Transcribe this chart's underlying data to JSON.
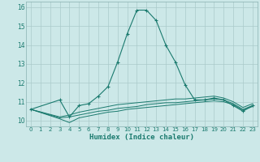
{
  "xlabel": "Humidex (Indice chaleur)",
  "x": [
    0,
    1,
    2,
    3,
    4,
    5,
    6,
    7,
    8,
    9,
    10,
    11,
    12,
    13,
    14,
    15,
    16,
    17,
    18,
    19,
    20,
    21,
    22,
    23
  ],
  "line1": [
    10.6,
    null,
    null,
    11.1,
    10.2,
    10.8,
    10.9,
    11.3,
    11.8,
    13.1,
    14.6,
    15.85,
    15.85,
    15.3,
    14.0,
    13.1,
    11.9,
    11.1,
    11.1,
    11.2,
    11.1,
    10.8,
    10.5,
    10.8
  ],
  "line2": [
    10.6,
    null,
    null,
    10.1,
    9.9,
    10.15,
    10.25,
    10.35,
    10.45,
    10.5,
    10.6,
    10.65,
    10.7,
    10.75,
    10.8,
    10.85,
    10.9,
    10.95,
    11.0,
    11.05,
    11.0,
    10.85,
    10.55,
    10.75
  ],
  "line3": [
    10.6,
    null,
    null,
    10.15,
    10.2,
    10.3,
    10.4,
    10.5,
    10.55,
    10.65,
    10.7,
    10.75,
    10.85,
    10.9,
    10.95,
    10.95,
    11.0,
    11.05,
    11.1,
    11.15,
    11.1,
    10.9,
    10.6,
    10.8
  ],
  "line4": [
    10.6,
    null,
    null,
    10.2,
    10.3,
    10.45,
    10.55,
    10.65,
    10.75,
    10.85,
    10.9,
    10.95,
    11.0,
    11.05,
    11.1,
    11.15,
    11.15,
    11.2,
    11.25,
    11.3,
    11.2,
    11.0,
    10.7,
    10.9
  ],
  "color": "#1a7a6e",
  "bg_color": "#cce8e8",
  "grid_color": "#aacaca",
  "ylim": [
    9.7,
    16.3
  ],
  "xlim": [
    -0.5,
    23.5
  ],
  "yticks": [
    10,
    11,
    12,
    13,
    14,
    15,
    16
  ],
  "xticks": [
    0,
    1,
    2,
    3,
    4,
    5,
    6,
    7,
    8,
    9,
    10,
    11,
    12,
    13,
    14,
    15,
    16,
    17,
    18,
    19,
    20,
    21,
    22,
    23
  ]
}
